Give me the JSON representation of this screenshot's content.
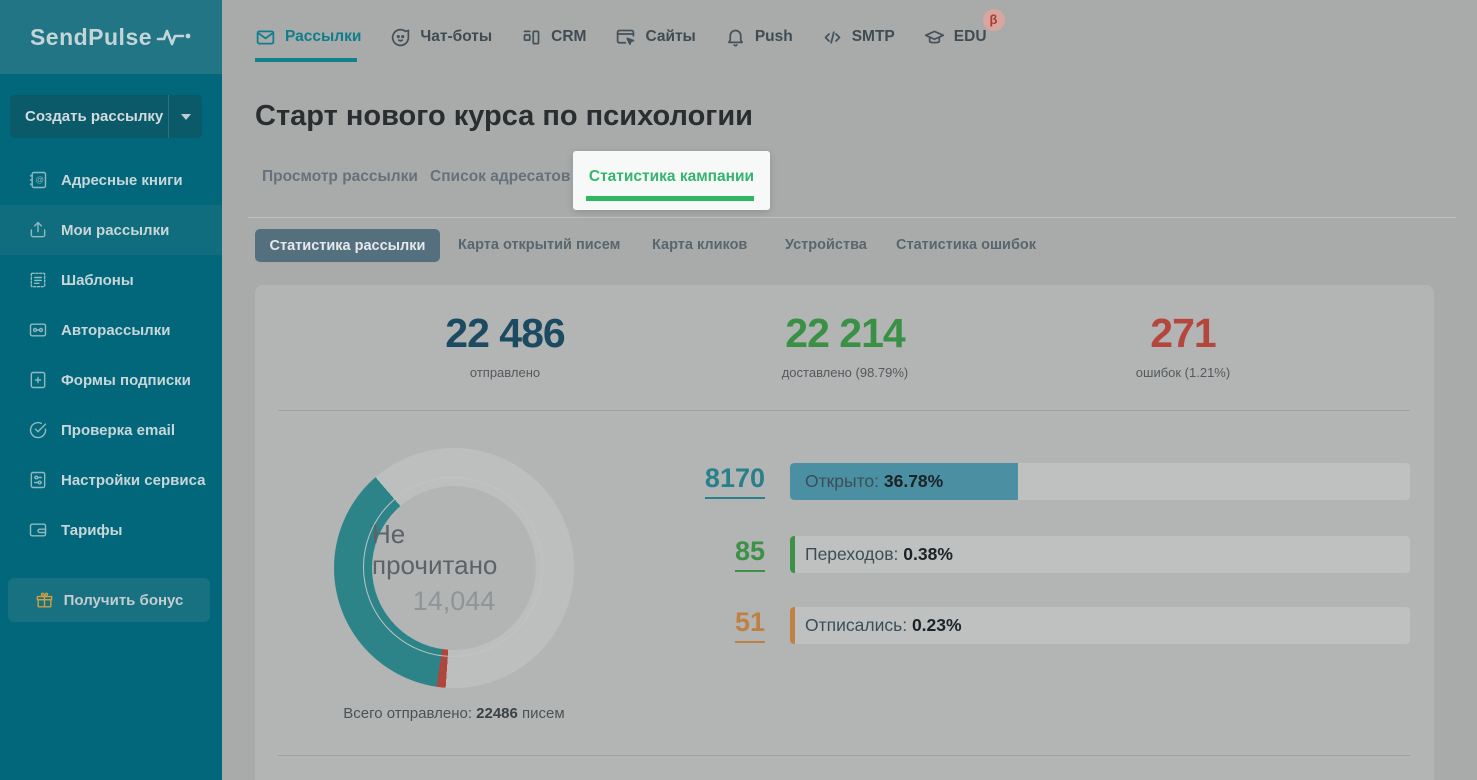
{
  "brand": {
    "name": "SendPulse"
  },
  "sidebar": {
    "create_button": {
      "label": "Создать рассылку"
    },
    "items": [
      {
        "label": "Адресные книги"
      },
      {
        "label": "Мои рассылки"
      },
      {
        "label": "Шаблоны"
      },
      {
        "label": "Авторассылки"
      },
      {
        "label": "Формы подписки"
      },
      {
        "label": "Проверка email"
      },
      {
        "label": "Настройки сервиса"
      },
      {
        "label": "Тарифы"
      }
    ],
    "bonus_button": {
      "label": "Получить бонус"
    }
  },
  "topnav": {
    "items": [
      {
        "label": "Рассылки"
      },
      {
        "label": "Чат-боты"
      },
      {
        "label": "CRM"
      },
      {
        "label": "Сайты"
      },
      {
        "label": "Push"
      },
      {
        "label": "SMTP"
      },
      {
        "label": "EDU",
        "badge": "β"
      }
    ]
  },
  "page": {
    "title": "Старт нового курса по психологии",
    "tabs": [
      {
        "label": "Просмотр рассылки"
      },
      {
        "label": "Список адресатов"
      },
      {
        "label": "Статистика кампании",
        "active": true,
        "highlighted": true
      }
    ],
    "subtabs": [
      {
        "label": "Статистика рассылки",
        "active": true
      },
      {
        "label": "Карта открытий писем"
      },
      {
        "label": "Карта кликов"
      },
      {
        "label": "Устройства"
      },
      {
        "label": "Статистика ошибок"
      }
    ]
  },
  "stats": {
    "summary": [
      {
        "value": "22 486",
        "label": "отправлено",
        "color": "#1c4a61"
      },
      {
        "value": "22 214",
        "label": "доставлено (98.79%)",
        "color": "#3a9045"
      },
      {
        "value": "271",
        "label": "ошибок (1.21%)",
        "color": "#b4463d"
      }
    ],
    "donut": {
      "center_label": "Не прочитано",
      "center_value": "14,044",
      "caption_prefix": "Всего отправлено: ",
      "caption_value": "22486",
      "caption_suffix": " писем"
    },
    "rows": [
      {
        "count": "8170",
        "count_color": "#27808a",
        "label": "Открыто: ",
        "value": "36.78%",
        "percent": 36.78,
        "fill_color": "#4a8fa2"
      },
      {
        "count": "85",
        "count_color": "#3d9146",
        "label": "Переходов: ",
        "value": "0.38%",
        "percent": 0.38,
        "fill_color": "#3d9146"
      },
      {
        "count": "51",
        "count_color": "#bf8142",
        "label": "Отписались: ",
        "value": "0.23%",
        "percent": 0.23,
        "fill_color": "#c08141"
      }
    ]
  },
  "chart_data": {
    "type": "pie",
    "title": "Статистика рассылки",
    "total": 22486,
    "start_angle_deg": 184,
    "segments": [
      {
        "label": "Ошибки",
        "value": 271,
        "color": "#b0453d"
      },
      {
        "label": "Открыто",
        "value": 8170,
        "color": "#2c8489"
      },
      {
        "label": "Не прочитано",
        "value": 14044,
        "color": "#bdbebe"
      }
    ],
    "center_label": "Не прочитано",
    "center_value": 14044,
    "caption": "Всего отправлено: 22486 писем"
  }
}
